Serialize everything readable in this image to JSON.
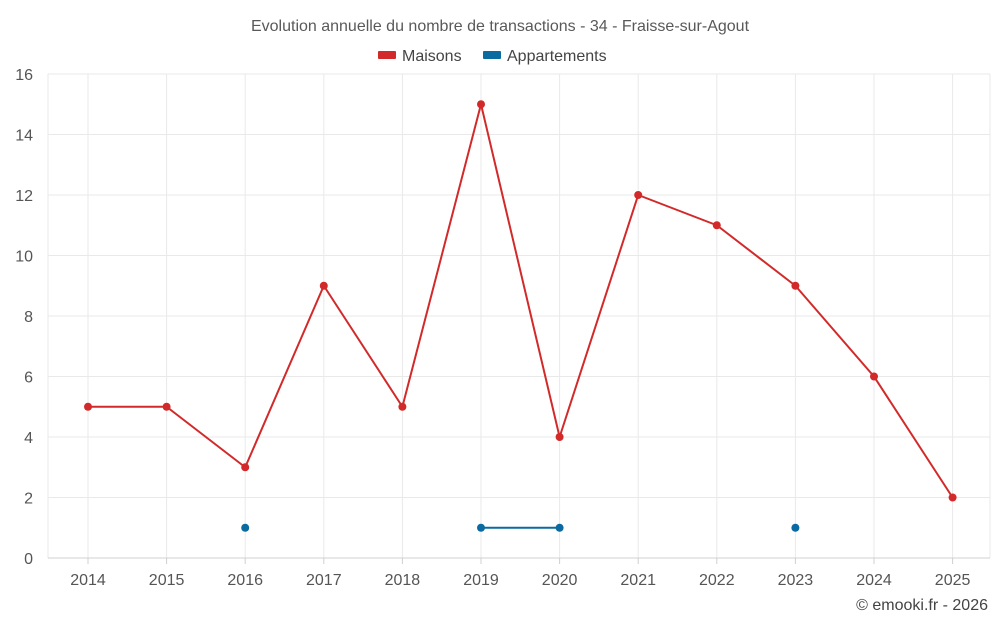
{
  "chart_data": {
    "type": "line",
    "title": "Evolution annuelle du nombre de transactions - 34 - Fraisse-sur-Agout",
    "categories": [
      "2014",
      "2015",
      "2016",
      "2017",
      "2018",
      "2019",
      "2020",
      "2021",
      "2022",
      "2023",
      "2024",
      "2025"
    ],
    "series": [
      {
        "name": "Maisons",
        "color": "#d22a2a",
        "values": [
          5,
          5,
          3,
          9,
          5,
          15,
          4,
          12,
          11,
          9,
          6,
          2
        ]
      },
      {
        "name": "Appartements",
        "color": "#0b6aa0",
        "values": [
          null,
          null,
          1,
          null,
          null,
          1,
          1,
          null,
          null,
          1,
          null,
          null
        ]
      }
    ],
    "xlabel": "",
    "ylabel": "",
    "ylim": [
      0,
      16
    ],
    "yticks": [
      0,
      2,
      4,
      6,
      8,
      10,
      12,
      14,
      16
    ],
    "grid": true,
    "legend_position": "top-center"
  },
  "credit": "© emooki.fr - 2026"
}
